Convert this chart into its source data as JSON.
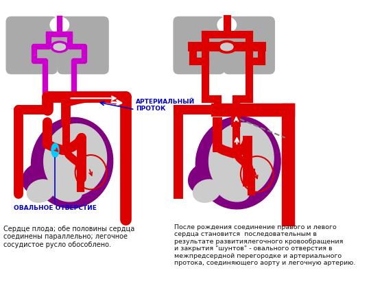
{
  "bg_color": "#ffffff",
  "left_label_cyan": "ОВАЛЬНОЕ ОТВЕРСТИЕ",
  "left_label_blue": "АРТЕРИАЛЬНЫЙ\nПРОТОК",
  "left_caption": "Сердце плода; обе половины сердца\nсоединены параллельно; легочное\nсосудистое русло обособлено.",
  "right_caption": "После рождения соединение правого и левого\nсердца становится  последовательным в\nрезультате развитиялегочного кровообращения\nи закрытия \"шунтов\" - овального отверстия в\nмежпредсердной перегородке и артериального\nпротока, соединяющего аорту и легочную артерию.",
  "colors": {
    "red": "#dd0000",
    "magenta": "#cc00cc",
    "purple": "#800080",
    "gray": "#aaaaaa",
    "light_gray": "#cccccc",
    "cyan": "#00ccff",
    "blue_label": "#0000cc",
    "black": "#111111",
    "white": "#ffffff",
    "dark_red": "#aa0000"
  }
}
